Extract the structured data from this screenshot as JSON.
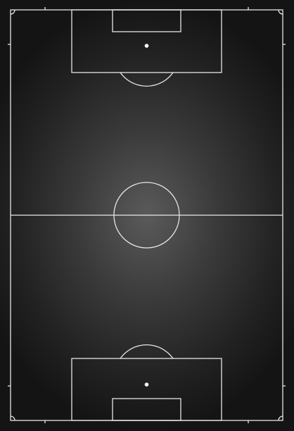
{
  "pitch": {
    "description_label": "",
    "line_color": "#e6e6e6",
    "center_spot_color": "#ffffff",
    "orientation": "vertical",
    "halves": 2
  }
}
